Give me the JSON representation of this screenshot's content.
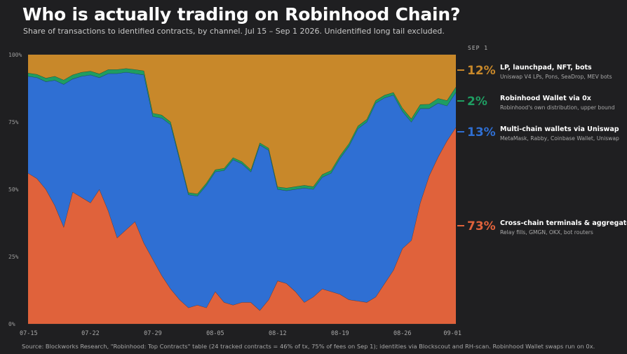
{
  "header": {
    "title": "Who is actually trading on Robinhood Chain?",
    "subtitle": "Share of transactions to identified contracts, by channel. Jul 15 – Sep 1 2026. Unidentified long tail excluded."
  },
  "footer": {
    "source": "Source: Blockworks Research, \"Robinhood: Top Contracts\" table (24 tracked contracts = 46% of tx, 75% of fees on Sep 1); identities via Blockscout and RH-scan. Robinhood Wallet swaps run on 0x."
  },
  "chart_data": {
    "type": "area",
    "stacked": true,
    "end_label": "SEP 1",
    "x": [
      "07-15",
      "07-16",
      "07-17",
      "07-18",
      "07-19",
      "07-20",
      "07-21",
      "07-22",
      "07-23",
      "07-24",
      "07-25",
      "07-26",
      "07-27",
      "07-28",
      "07-29",
      "07-30",
      "07-31",
      "08-01",
      "08-02",
      "08-03",
      "08-04",
      "08-05",
      "08-06",
      "08-07",
      "08-08",
      "08-09",
      "08-10",
      "08-11",
      "08-12",
      "08-13",
      "08-14",
      "08-15",
      "08-16",
      "08-17",
      "08-18",
      "08-19",
      "08-20",
      "08-21",
      "08-22",
      "08-23",
      "08-24",
      "08-25",
      "08-26",
      "08-27",
      "08-28",
      "08-29",
      "08-30",
      "08-31",
      "09-01"
    ],
    "xticks": [
      "07-15",
      "07-22",
      "07-29",
      "08-05",
      "08-12",
      "08-19",
      "08-26",
      "09-01"
    ],
    "yticks": [
      "0%",
      "25%",
      "50%",
      "75%",
      "100%"
    ],
    "ylim": [
      0,
      100
    ],
    "series": [
      {
        "name": "Cross-chain terminals & aggregators",
        "sub": "Relay fills, GMGN, OKX, bot routers",
        "color": "#e0623b",
        "final": "73%",
        "values": [
          56,
          54,
          50,
          44,
          36,
          49,
          47,
          45,
          50,
          42,
          32,
          35,
          38,
          30,
          24,
          18,
          13,
          9,
          6,
          7,
          6,
          12,
          8,
          7,
          8,
          8,
          5,
          9,
          16,
          15,
          12,
          8,
          10,
          13,
          12,
          11,
          9,
          8.5,
          8,
          10,
          15,
          20,
          28,
          31,
          45,
          55,
          62,
          68,
          73
        ]
      },
      {
        "name": "Multi-chain wallets via Uniswap",
        "sub": "MetaMask, Rabby, Coinbase Wallet, Uniswap",
        "color": "#2f6fd3",
        "final": "13%",
        "values": [
          36,
          37.5,
          40,
          46.5,
          53,
          42,
          45,
          47.5,
          41.5,
          51,
          61,
          58.5,
          55,
          62.5,
          53,
          58.5,
          61,
          52,
          42,
          40.5,
          45.5,
          44.5,
          49,
          54,
          51.5,
          48.5,
          61.5,
          55.5,
          34,
          34.5,
          38,
          42.5,
          40,
          41.5,
          44,
          50.5,
          57,
          64,
          67,
          72,
          69,
          65,
          51,
          44,
          35,
          25,
          20,
          13,
          13
        ]
      },
      {
        "name": "Robinhood Wallet via 0x",
        "sub": "Robinhood's own distribution, upper bound",
        "color": "#1f9d62",
        "final": "2%",
        "values": [
          1.2,
          1.2,
          1.3,
          1.5,
          1.6,
          1.5,
          1.5,
          1.4,
          1.4,
          1.5,
          1.5,
          1.4,
          1.5,
          1.5,
          1.3,
          1.1,
          1.0,
          0.9,
          0.8,
          0.8,
          0.8,
          0.8,
          0.8,
          0.8,
          0.8,
          0.8,
          0.8,
          0.8,
          0.9,
          1.0,
          1.0,
          1.0,
          1.0,
          1.0,
          1.0,
          1.0,
          1.0,
          1.0,
          1.0,
          1.0,
          1.0,
          1.0,
          1.2,
          1.2,
          1.5,
          1.6,
          1.8,
          2.0,
          2.0
        ]
      },
      {
        "name": "LP, launchpad, NFT, bots",
        "sub": "Uniswap V4 LPs, Pons, SeaDrop, MEV bots",
        "color": "#c8882a",
        "final": "12%",
        "values": [
          6.8,
          7.3,
          8.7,
          8.0,
          9.4,
          7.5,
          6.5,
          6.1,
          7.1,
          5.5,
          5.5,
          5.1,
          5.5,
          6.0,
          21.7,
          22.4,
          25.0,
          38.1,
          51.2,
          51.7,
          47.7,
          42.7,
          42.2,
          38.2,
          39.7,
          42.7,
          32.7,
          34.7,
          49.1,
          49.5,
          49.0,
          48.5,
          49.0,
          44.5,
          43.0,
          37.5,
          33.0,
          26.5,
          24.0,
          17.0,
          15.0,
          14.0,
          19.8,
          23.8,
          18.5,
          18.4,
          16.2,
          17.0,
          12.0
        ]
      }
    ],
    "legend_order": [
      3,
      2,
      1,
      0
    ]
  }
}
